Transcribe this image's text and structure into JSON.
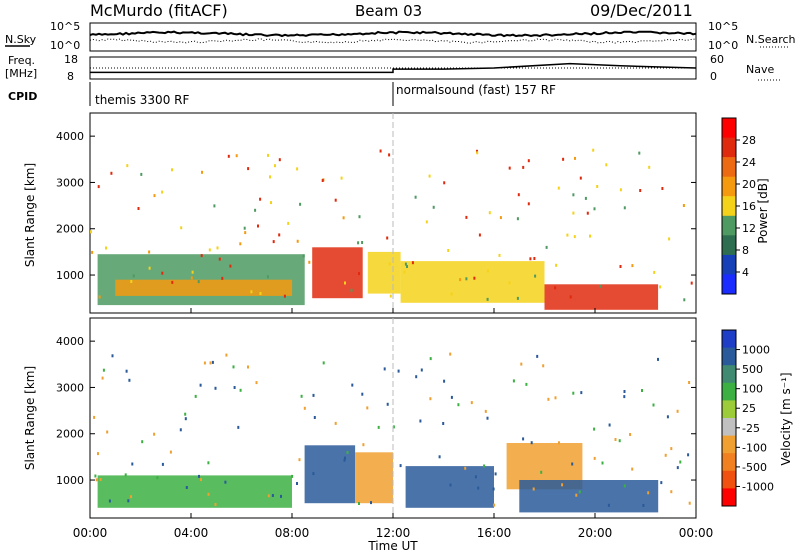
{
  "header": {
    "station": "McMurdo (fitACF)",
    "beam": "Beam 03",
    "date": "09/Dec/2011"
  },
  "noise_panel": {
    "left_label": "N.Sky",
    "right_label": "N.Search",
    "left_ticks": [
      "10^5",
      "10^0"
    ],
    "right_ticks": [
      "10^5",
      "10^0"
    ]
  },
  "freq_panel": {
    "left_label_1": "Freq.",
    "left_label_2": "[MHz]",
    "right_label": "Nave",
    "left_ticks": [
      "18",
      "8"
    ],
    "right_ticks": [
      "60",
      "0"
    ]
  },
  "cpid": {
    "label": "CPID",
    "segments": [
      {
        "name": "themis 3300 RF",
        "start_hour": 0
      },
      {
        "name": "normalsound (fast) 157 RF",
        "start_hour": 12
      }
    ]
  },
  "power_panel": {
    "ylabel": "Slant Range [km]",
    "yticks": [
      "1000",
      "2000",
      "3000",
      "4000"
    ],
    "colorbar": {
      "title": "Power [dB]",
      "ticks": [
        "4",
        "8",
        "12",
        "16",
        "20",
        "24",
        "28"
      ],
      "colors": [
        "#1a2cff",
        "#1540b8",
        "#2e6e50",
        "#4e9a62",
        "#f5d21a",
        "#f59a0e",
        "#ee6a12",
        "#e02a0e",
        "#ff0000"
      ]
    }
  },
  "velocity_panel": {
    "ylabel": "Slant Range [km]",
    "yticks": [
      "1000",
      "2000",
      "3000",
      "4000"
    ],
    "colorbar": {
      "title": "Velocity [m s⁻¹]",
      "ticks": [
        "1000",
        "500",
        "100",
        "25",
        "-25",
        "-100",
        "-500",
        "-1000"
      ],
      "colors": [
        "#1e3ec8",
        "#2a5a9a",
        "#3f8a70",
        "#3cb043",
        "#9ccc3a",
        "#c0c0c0",
        "#f0a030",
        "#f08020",
        "#f05010",
        "#ff0000"
      ]
    }
  },
  "x_axis": {
    "label": "Time UT",
    "ticks": [
      "00:00",
      "04:00",
      "08:00",
      "12:00",
      "16:00",
      "20:00",
      "00:00"
    ]
  },
  "chart_data": {
    "type": "heatmap",
    "title": "McMurdo (fitACF)  Beam 03  09/Dec/2011",
    "xlabel": "Time UT",
    "ylabel": "Slant Range [km]",
    "xlim_hours": [
      0,
      24
    ],
    "ylim_km": [
      180,
      4500
    ],
    "freq_mhz": [
      {
        "t": 0,
        "v": 11
      },
      {
        "t": 12,
        "v": 11
      },
      {
        "t": 12,
        "v": 12.5
      },
      {
        "t": 14,
        "v": 12.5
      },
      {
        "t": 16,
        "v": 13
      },
      {
        "t": 19,
        "v": 15
      },
      {
        "t": 21,
        "v": 14
      },
      {
        "t": 24,
        "v": 13
      }
    ],
    "power_regions": [
      {
        "t0": 0.3,
        "t1": 8.5,
        "r0": 350,
        "r1": 1450,
        "level": 12,
        "series": "Power"
      },
      {
        "t0": 1.0,
        "t1": 8.0,
        "r0": 550,
        "r1": 900,
        "level": 20,
        "series": "Power"
      },
      {
        "t0": 8.8,
        "t1": 10.8,
        "r0": 500,
        "r1": 1600,
        "level": 28,
        "series": "Power"
      },
      {
        "t0": 11.0,
        "t1": 12.3,
        "r0": 600,
        "r1": 1500,
        "level": 16,
        "series": "Power"
      },
      {
        "t0": 12.3,
        "t1": 18.0,
        "r0": 400,
        "r1": 1300,
        "level": 16,
        "series": "Power"
      },
      {
        "t0": 18.0,
        "t1": 22.5,
        "r0": 250,
        "r1": 800,
        "level": 28,
        "series": "Power"
      }
    ],
    "velocity_regions": [
      {
        "t0": 0.3,
        "t1": 8.0,
        "r0": 400,
        "r1": 1100,
        "level": 100,
        "series": "Velocity"
      },
      {
        "t0": 8.5,
        "t1": 10.5,
        "r0": 500,
        "r1": 1750,
        "level": 500,
        "series": "Velocity"
      },
      {
        "t0": 10.5,
        "t1": 12.0,
        "r0": 500,
        "r1": 1600,
        "level": -100,
        "series": "Velocity"
      },
      {
        "t0": 12.5,
        "t1": 16.0,
        "r0": 400,
        "r1": 1300,
        "level": 500,
        "series": "Velocity"
      },
      {
        "t0": 16.5,
        "t1": 19.5,
        "r0": 800,
        "r1": 1800,
        "level": -100,
        "series": "Velocity"
      },
      {
        "t0": 17.0,
        "t1": 22.5,
        "r0": 300,
        "r1": 1000,
        "level": 500,
        "series": "Velocity"
      }
    ]
  }
}
